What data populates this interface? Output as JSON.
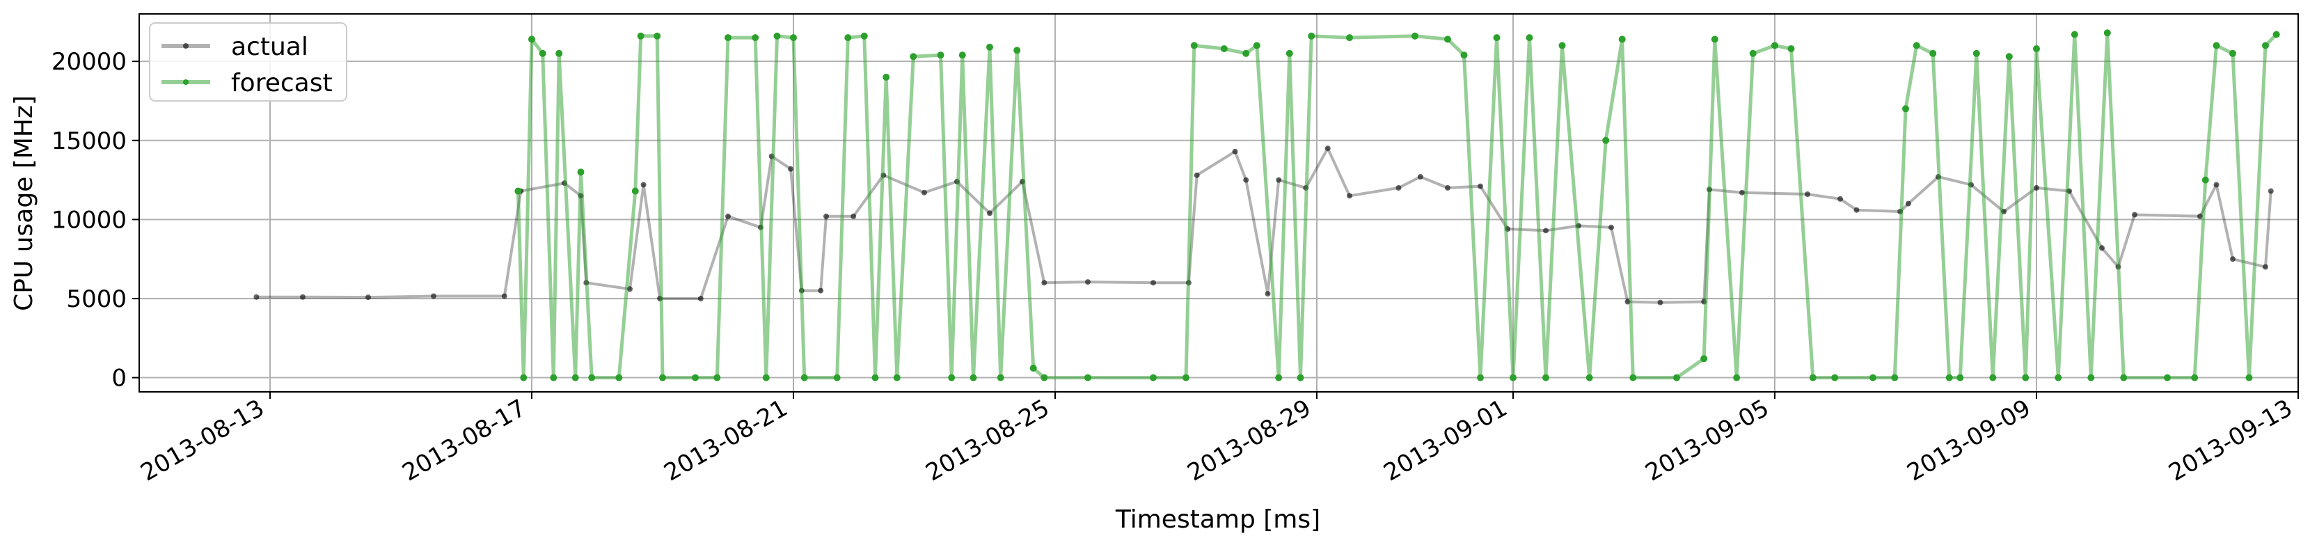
{
  "chart_data": {
    "type": "line",
    "title": "",
    "xlabel": "Timestamp [ms]",
    "ylabel": "CPU usage [MHz]",
    "x_range": [
      "2013-08-11",
      "2013-09-13"
    ],
    "ylim": [
      -900,
      23000
    ],
    "grid": true,
    "legend_position": "top-left",
    "x_ticks": [
      "2013-08-13",
      "2013-08-17",
      "2013-08-21",
      "2013-08-25",
      "2013-08-29",
      "2013-09-01",
      "2013-09-05",
      "2013-09-09",
      "2013-09-13"
    ],
    "y_ticks": [
      0,
      5000,
      10000,
      15000,
      20000
    ],
    "y_tick_labels": [
      "0",
      "5000",
      "10000",
      "15000",
      "20000"
    ],
    "series": [
      {
        "name": "actual",
        "color": "#000000",
        "points": [
          [
            "2013-08-12 19:00",
            5100
          ],
          [
            "2013-08-13 12:00",
            5100
          ],
          [
            "2013-08-14 12:00",
            5080
          ],
          [
            "2013-08-15 12:00",
            5150
          ],
          [
            "2013-08-16 14:00",
            5150
          ],
          [
            "2013-08-16 20:00",
            11800
          ],
          [
            "2013-08-17 12:00",
            12300
          ],
          [
            "2013-08-17 18:00",
            11500
          ],
          [
            "2013-08-17 20:00",
            6000
          ],
          [
            "2013-08-18 12:00",
            5600
          ],
          [
            "2013-08-18 17:00",
            12200
          ],
          [
            "2013-08-18 23:00",
            5000
          ],
          [
            "2013-08-19 14:00",
            5000
          ],
          [
            "2013-08-20 00:00",
            10200
          ],
          [
            "2013-08-20 12:00",
            9500
          ],
          [
            "2013-08-20 16:00",
            14000
          ],
          [
            "2013-08-20 23:00",
            13200
          ],
          [
            "2013-08-21 03:00",
            5500
          ],
          [
            "2013-08-21 10:00",
            5500
          ],
          [
            "2013-08-21 12:00",
            10200
          ],
          [
            "2013-08-21 22:00",
            10200
          ],
          [
            "2013-08-22 09:00",
            12800
          ],
          [
            "2013-08-23 00:00",
            11700
          ],
          [
            "2013-08-23 12:00",
            12400
          ],
          [
            "2013-08-24 00:00",
            10400
          ],
          [
            "2013-08-24 12:00",
            12400
          ],
          [
            "2013-08-24 20:00",
            6000
          ],
          [
            "2013-08-25 12:00",
            6050
          ],
          [
            "2013-08-26 12:00",
            6000
          ],
          [
            "2013-08-27 01:00",
            6000
          ],
          [
            "2013-08-27 04:00",
            12800
          ],
          [
            "2013-08-27 18:00",
            14300
          ],
          [
            "2013-08-27 22:00",
            12500
          ],
          [
            "2013-08-28 06:00",
            5300
          ],
          [
            "2013-08-28 10:00",
            12500
          ],
          [
            "2013-08-28 20:00",
            12000
          ],
          [
            "2013-08-29 04:00",
            14500
          ],
          [
            "2013-08-29 12:00",
            11500
          ],
          [
            "2013-08-30 06:00",
            12000
          ],
          [
            "2013-08-30 14:00",
            12700
          ],
          [
            "2013-08-31 00:00",
            12000
          ],
          [
            "2013-08-31 12:00",
            12100
          ],
          [
            "2013-08-31 22:00",
            9400
          ],
          [
            "2013-09-01 12:00",
            9300
          ],
          [
            "2013-09-02 00:00",
            9600
          ],
          [
            "2013-09-02 12:00",
            9500
          ],
          [
            "2013-09-02 18:00",
            4800
          ],
          [
            "2013-09-03 06:00",
            4750
          ],
          [
            "2013-09-03 22:00",
            4800
          ],
          [
            "2013-09-04 00:00",
            11900
          ],
          [
            "2013-09-04 12:00",
            11700
          ],
          [
            "2013-09-05 12:00",
            11600
          ],
          [
            "2013-09-06 00:00",
            11300
          ],
          [
            "2013-09-06 06:00",
            10600
          ],
          [
            "2013-09-06 22:00",
            10500
          ],
          [
            "2013-09-07 01:00",
            11000
          ],
          [
            "2013-09-07 12:00",
            12700
          ],
          [
            "2013-09-08 00:00",
            12200
          ],
          [
            "2013-09-08 12:00",
            10500
          ],
          [
            "2013-09-09 00:00",
            12000
          ],
          [
            "2013-09-09 12:00",
            11800
          ],
          [
            "2013-09-10 00:00",
            8200
          ],
          [
            "2013-09-10 06:00",
            7000
          ],
          [
            "2013-09-10 12:00",
            10300
          ],
          [
            "2013-09-11 12:00",
            10200
          ],
          [
            "2013-09-11 18:00",
            12200
          ],
          [
            "2013-09-12 00:00",
            7500
          ],
          [
            "2013-09-12 12:00",
            7000
          ],
          [
            "2013-09-12 14:00",
            11800
          ]
        ]
      },
      {
        "name": "forecast",
        "color": "#2ca02c",
        "points": [
          [
            "2013-08-16 19:00",
            11800
          ],
          [
            "2013-08-16 21:00",
            0
          ],
          [
            "2013-08-17 00:00",
            21400
          ],
          [
            "2013-08-17 04:00",
            20500
          ],
          [
            "2013-08-17 08:00",
            0
          ],
          [
            "2013-08-17 10:00",
            20500
          ],
          [
            "2013-08-17 16:00",
            0
          ],
          [
            "2013-08-17 18:00",
            13000
          ],
          [
            "2013-08-17 22:00",
            0
          ],
          [
            "2013-08-18 08:00",
            0
          ],
          [
            "2013-08-18 14:00",
            11800
          ],
          [
            "2013-08-18 16:00",
            21600
          ],
          [
            "2013-08-18 22:00",
            21600
          ],
          [
            "2013-08-19 00:00",
            0
          ],
          [
            "2013-08-19 12:00",
            0
          ],
          [
            "2013-08-19 20:00",
            0
          ],
          [
            "2013-08-20 00:00",
            21500
          ],
          [
            "2013-08-20 10:00",
            21500
          ],
          [
            "2013-08-20 14:00",
            0
          ],
          [
            "2013-08-20 18:00",
            21600
          ],
          [
            "2013-08-21 00:00",
            21500
          ],
          [
            "2013-08-21 04:00",
            0
          ],
          [
            "2013-08-21 16:00",
            0
          ],
          [
            "2013-08-21 20:00",
            21500
          ],
          [
            "2013-08-22 02:00",
            21600
          ],
          [
            "2013-08-22 06:00",
            0
          ],
          [
            "2013-08-22 10:00",
            19000
          ],
          [
            "2013-08-22 14:00",
            0
          ],
          [
            "2013-08-22 20:00",
            20300
          ],
          [
            "2013-08-23 06:00",
            20400
          ],
          [
            "2013-08-23 10:00",
            0
          ],
          [
            "2013-08-23 14:00",
            20400
          ],
          [
            "2013-08-23 18:00",
            0
          ],
          [
            "2013-08-24 00:00",
            20900
          ],
          [
            "2013-08-24 04:00",
            0
          ],
          [
            "2013-08-24 10:00",
            20700
          ],
          [
            "2013-08-24 16:00",
            600
          ],
          [
            "2013-08-24 20:00",
            0
          ],
          [
            "2013-08-25 12:00",
            0
          ],
          [
            "2013-08-26 12:00",
            0
          ],
          [
            "2013-08-27 00:00",
            0
          ],
          [
            "2013-08-27 03:00",
            21000
          ],
          [
            "2013-08-27 14:00",
            20800
          ],
          [
            "2013-08-27 22:00",
            20500
          ],
          [
            "2013-08-28 02:00",
            21000
          ],
          [
            "2013-08-28 10:00",
            0
          ],
          [
            "2013-08-28 14:00",
            20500
          ],
          [
            "2013-08-28 18:00",
            0
          ],
          [
            "2013-08-28 22:00",
            21600
          ],
          [
            "2013-08-29 12:00",
            21500
          ],
          [
            "2013-08-30 12:00",
            21600
          ],
          [
            "2013-08-31 00:00",
            21400
          ],
          [
            "2013-08-31 06:00",
            20400
          ],
          [
            "2013-08-31 12:00",
            0
          ],
          [
            "2013-08-31 18:00",
            21500
          ],
          [
            "2013-09-01 00:00",
            0
          ],
          [
            "2013-09-01 06:00",
            21500
          ],
          [
            "2013-09-01 12:00",
            0
          ],
          [
            "2013-09-01 18:00",
            21000
          ],
          [
            "2013-09-02 04:00",
            0
          ],
          [
            "2013-09-02 10:00",
            15000
          ],
          [
            "2013-09-02 16:00",
            21400
          ],
          [
            "2013-09-02 20:00",
            0
          ],
          [
            "2013-09-03 12:00",
            0
          ],
          [
            "2013-09-03 22:00",
            1200
          ],
          [
            "2013-09-04 02:00",
            21400
          ],
          [
            "2013-09-04 10:00",
            0
          ],
          [
            "2013-09-04 16:00",
            20500
          ],
          [
            "2013-09-05 00:00",
            21000
          ],
          [
            "2013-09-05 06:00",
            20800
          ],
          [
            "2013-09-05 14:00",
            0
          ],
          [
            "2013-09-05 22:00",
            0
          ],
          [
            "2013-09-06 12:00",
            0
          ],
          [
            "2013-09-06 20:00",
            0
          ],
          [
            "2013-09-07 00:00",
            17000
          ],
          [
            "2013-09-07 04:00",
            21000
          ],
          [
            "2013-09-07 10:00",
            20500
          ],
          [
            "2013-09-07 16:00",
            0
          ],
          [
            "2013-09-07 20:00",
            0
          ],
          [
            "2013-09-08 02:00",
            20500
          ],
          [
            "2013-09-08 08:00",
            0
          ],
          [
            "2013-09-08 14:00",
            20300
          ],
          [
            "2013-09-08 20:00",
            0
          ],
          [
            "2013-09-09 00:00",
            20800
          ],
          [
            "2013-09-09 08:00",
            0
          ],
          [
            "2013-09-09 14:00",
            21700
          ],
          [
            "2013-09-09 20:00",
            0
          ],
          [
            "2013-09-10 02:00",
            21800
          ],
          [
            "2013-09-10 08:00",
            0
          ],
          [
            "2013-09-11 00:00",
            0
          ],
          [
            "2013-09-11 10:00",
            0
          ],
          [
            "2013-09-11 14:00",
            12500
          ],
          [
            "2013-09-11 18:00",
            21000
          ],
          [
            "2013-09-12 00:00",
            20500
          ],
          [
            "2013-09-12 06:00",
            0
          ],
          [
            "2013-09-12 12:00",
            21000
          ],
          [
            "2013-09-12 16:00",
            21700
          ]
        ]
      }
    ]
  }
}
